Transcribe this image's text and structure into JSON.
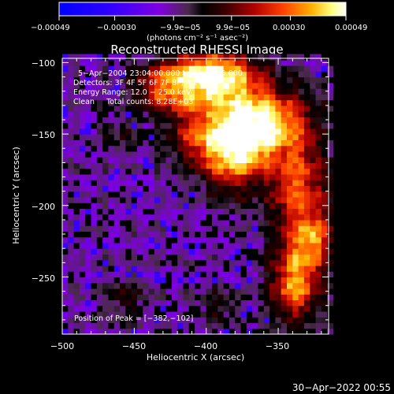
{
  "chart_data": {
    "type": "heatmap",
    "title": "Reconstructed RHESSI Image",
    "xlabel": "Heliocentric X (arcsec)",
    "ylabel": "Heliocentric Y (arcsec)",
    "xlim": [
      -500,
      -315
    ],
    "ylim": [
      -290,
      -97
    ],
    "x_ticks": [
      -500,
      -450,
      -400,
      -350
    ],
    "x_tick_labels": [
      "−500",
      "−450",
      "−400",
      "−350"
    ],
    "y_ticks": [
      -100,
      -150,
      -200,
      -250
    ],
    "y_tick_labels": [
      "−100",
      "−150",
      "−200",
      "−250"
    ],
    "colorbar": {
      "range": [
        -0.00049,
        0.00049
      ],
      "tick_labels": [
        "−0.00049",
        "−0.00030",
        "−9.9e−05",
        "9.9e−05",
        "0.00030",
        "0.00049"
      ],
      "units_label": "(photons cm⁻² s⁻¹ asec⁻²)",
      "colors": [
        "#0000ff",
        "#3000ff",
        "#8000e0",
        "#4a2a4a",
        "#000000",
        "#3a0000",
        "#b00000",
        "#ff4000",
        "#ffb000",
        "#ffff80",
        "#ffffff"
      ]
    },
    "annotations": [
      "5−Apr−2004 23:04:00.000 to 23:11:00.000",
      "Detectors: 3F 4F 5F 6F 7F 8F, Att 0",
      "Energy Range: 12.0 − 25.0 keV",
      "Clean     Total counts: 8.28E+03"
    ],
    "peak_label": "Position of Peak = [−382,−102]",
    "peak_position": [
      -382,
      -102
    ],
    "intensity_sources": [
      {
        "x": -395,
        "y": -110,
        "sx": 22,
        "sy": 14,
        "amp": 1.0
      },
      {
        "x": -380,
        "y": -158,
        "sx": 18,
        "sy": 20,
        "amp": 1.0
      },
      {
        "x": -355,
        "y": -140,
        "sx": 20,
        "sy": 15,
        "amp": 0.7
      },
      {
        "x": -430,
        "y": -118,
        "sx": 16,
        "sy": 12,
        "amp": 0.5
      },
      {
        "x": -335,
        "y": -190,
        "sx": 14,
        "sy": 28,
        "amp": 0.65
      },
      {
        "x": -338,
        "y": -255,
        "sx": 12,
        "sy": 18,
        "amp": 0.75
      },
      {
        "x": -325,
        "y": -225,
        "sx": 9,
        "sy": 12,
        "amp": 0.5
      },
      {
        "x": -410,
        "y": -150,
        "sx": 14,
        "sy": 14,
        "amp": 0.35
      },
      {
        "x": -455,
        "y": -265,
        "sx": 10,
        "sy": 10,
        "amp": 0.25
      },
      {
        "x": -390,
        "y": -270,
        "sx": 10,
        "sy": 8,
        "amp": 0.25
      },
      {
        "x": -460,
        "y": -150,
        "sx": 8,
        "sy": 8,
        "amp": 0.2
      }
    ]
  },
  "footer_timestamp": "30−Apr−2022 00:55"
}
